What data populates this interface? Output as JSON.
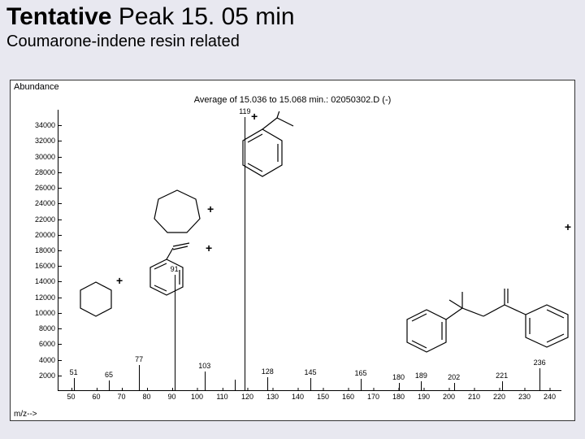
{
  "title": {
    "bold": "Tentative",
    "rest": " Peak 15. 05 min"
  },
  "subtitle": "Coumarone-indene resin related",
  "chart": {
    "y_axis_label": "Abundance",
    "x_axis_label": "m/z-->",
    "title": "Average of 15.036 to 15.068 min.: 02050302.D (-)",
    "y_ticks": [
      2000,
      4000,
      6000,
      8000,
      10000,
      12000,
      14000,
      16000,
      18000,
      20000,
      22000,
      24000,
      26000,
      28000,
      30000,
      32000,
      34000
    ],
    "y_max": 36000,
    "x_ticks": [
      50,
      60,
      70,
      80,
      90,
      100,
      110,
      120,
      130,
      140,
      150,
      160,
      170,
      180,
      190,
      200,
      210,
      220,
      230,
      240
    ],
    "x_min": 45,
    "x_max": 245,
    "peaks": [
      {
        "mz": 51,
        "abund": 1600,
        "label": "51"
      },
      {
        "mz": 65,
        "abund": 1300,
        "label": "65"
      },
      {
        "mz": 77,
        "abund": 3200,
        "label": "77"
      },
      {
        "mz": 91,
        "abund": 14800,
        "label": "91"
      },
      {
        "mz": 103,
        "abund": 2400,
        "label": "103"
      },
      {
        "mz": 115,
        "abund": 1400,
        "label": null
      },
      {
        "mz": 119,
        "abund": 35000,
        "label": "119"
      },
      {
        "mz": 128,
        "abund": 1700,
        "label": "128"
      },
      {
        "mz": 145,
        "abund": 1600,
        "label": "145"
      },
      {
        "mz": 165,
        "abund": 1500,
        "label": "165"
      },
      {
        "mz": 180,
        "abund": 900,
        "label": "180"
      },
      {
        "mz": 189,
        "abund": 1100,
        "label": "189"
      },
      {
        "mz": 202,
        "abund": 900,
        "label": "202"
      },
      {
        "mz": 221,
        "abund": 1100,
        "label": "221"
      },
      {
        "mz": 236,
        "abund": 2800,
        "label": "236"
      }
    ],
    "bar_color": "#000000",
    "background": "#ffffff"
  },
  "plus_marks": [
    "+",
    "+",
    "+",
    "+",
    "+"
  ],
  "structures": {
    "cyclohexane": "cyclohexane-structure",
    "cycloheptane": "cycloheptane-structure",
    "styrene": "styrene-structure",
    "cumene": "isopropylbenzene-structure",
    "dimer": "diphenyl-structure"
  }
}
